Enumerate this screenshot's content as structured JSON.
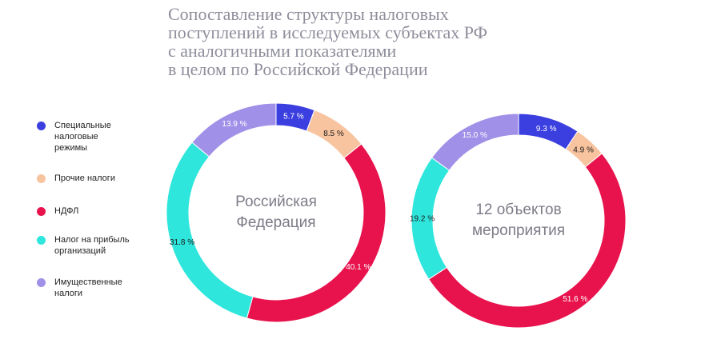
{
  "title": {
    "lines": [
      "Сопоставление структуры налоговых",
      "поступлений в исследуемых субъектах РФ",
      "с аналогичными показателями",
      "в целом по Российской Федерации"
    ]
  },
  "legend": [
    {
      "label": "Специальные налоговые режимы",
      "color": "#3b3fe0"
    },
    {
      "label": "Прочие налоги",
      "color": "#f8c39f"
    },
    {
      "label": "НДФЛ",
      "color": "#e8134d"
    },
    {
      "label": "Налог на прибыль организаций",
      "color": "#2ee6dc"
    },
    {
      "label": "Имущественные налоги",
      "color": "#a190e8"
    }
  ],
  "chart_data": [
    {
      "type": "pie",
      "variant": "donut",
      "center_label": [
        "Российская",
        "Федерация"
      ],
      "categories": [
        "Специальные налоговые режимы",
        "Прочие налоги",
        "НДФЛ",
        "Налог на прибыль организаций",
        "Имущественные налоги"
      ],
      "values": [
        5.7,
        8.5,
        40.1,
        31.8,
        13.9
      ],
      "labels": [
        "5.7 %",
        "8.5 %",
        "40.1 %",
        "31.8 %",
        "13.9 %"
      ],
      "colors": [
        "#3b3fe0",
        "#f8c39f",
        "#e8134d",
        "#2ee6dc",
        "#a190e8"
      ],
      "label_colors": [
        "#ffffff",
        "#1a1a1a",
        "#ffffff",
        "#1a1a1a",
        "#ffffff"
      ]
    },
    {
      "type": "pie",
      "variant": "donut",
      "center_label": [
        "12 объектов",
        "мероприятия"
      ],
      "categories": [
        "Специальные налоговые режимы",
        "Прочие налоги",
        "НДФЛ",
        "Налог на прибыль организаций",
        "Имущественные налоги"
      ],
      "values": [
        9.3,
        4.9,
        51.6,
        19.2,
        15.0
      ],
      "labels": [
        "9.3 %",
        "4.9 %",
        "51.6 %",
        "19.2 %",
        "15.0 %"
      ],
      "colors": [
        "#3b3fe0",
        "#f8c39f",
        "#e8134d",
        "#2ee6dc",
        "#a190e8"
      ],
      "label_colors": [
        "#ffffff",
        "#1a1a1a",
        "#ffffff",
        "#1a1a1a",
        "#ffffff"
      ]
    }
  ]
}
